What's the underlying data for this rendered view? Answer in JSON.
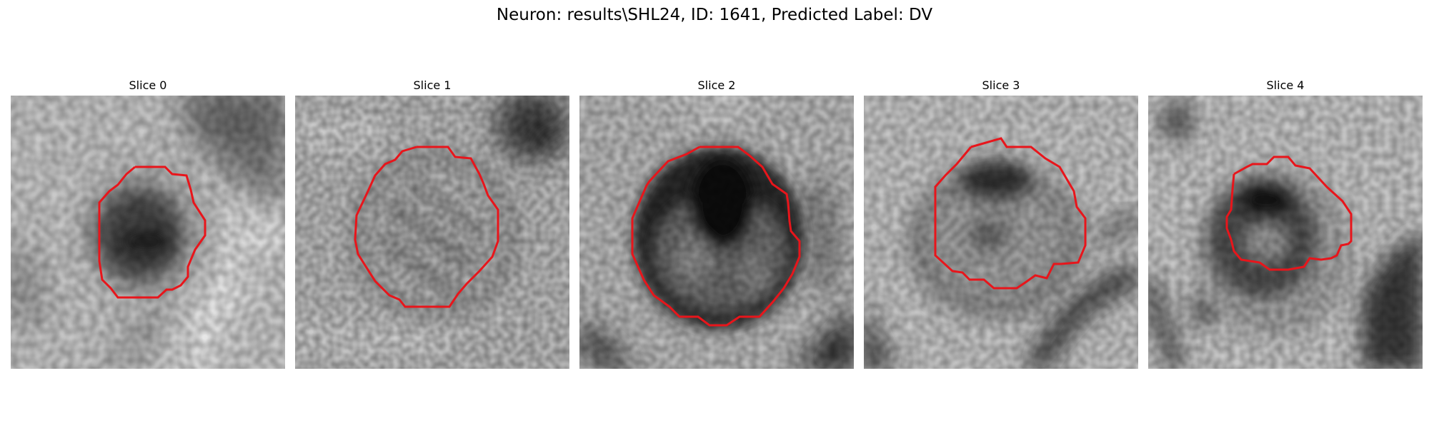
{
  "figure": {
    "suptitle": "Neuron: results\\SHL24, ID: 1641, Predicted Label: DV"
  },
  "panels": [
    {
      "title": "Slice 0"
    },
    {
      "title": "Slice 1"
    },
    {
      "title": "Slice 2"
    },
    {
      "title": "Slice 3"
    },
    {
      "title": "Slice 4"
    }
  ],
  "colors": {
    "contour": "#e8151b",
    "background": "#ffffff",
    "colormap": "grayscale"
  }
}
